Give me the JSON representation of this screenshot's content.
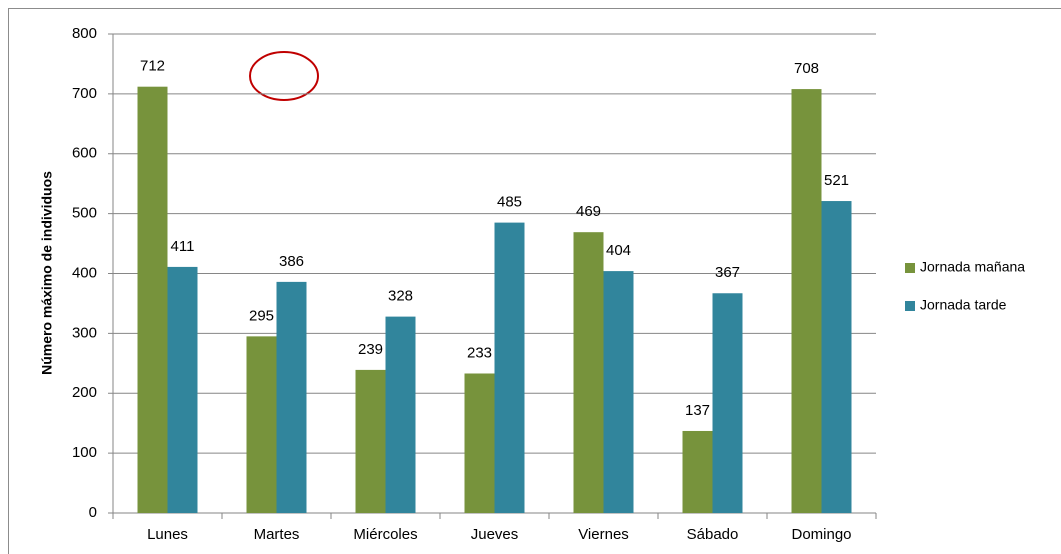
{
  "chart_data": {
    "type": "bar",
    "y_label": "Número máximo de individuos",
    "categories": [
      "Lunes",
      "Martes",
      "Miércoles",
      "Jueves",
      "Viernes",
      "Sábado",
      "Domingo"
    ],
    "series": [
      {
        "name": "Jornada mañana",
        "color": "#77933c",
        "values": [
          712,
          295,
          239,
          233,
          469,
          137,
          708
        ]
      },
      {
        "name": "Jornada tarde",
        "color": "#31859c",
        "values": [
          411,
          386,
          328,
          485,
          404,
          367,
          521
        ]
      }
    ],
    "ylim": [
      0,
      800
    ],
    "yticks": [
      0,
      100,
      200,
      300,
      400,
      500,
      600,
      700,
      800
    ],
    "grid": true,
    "legend": "right"
  }
}
